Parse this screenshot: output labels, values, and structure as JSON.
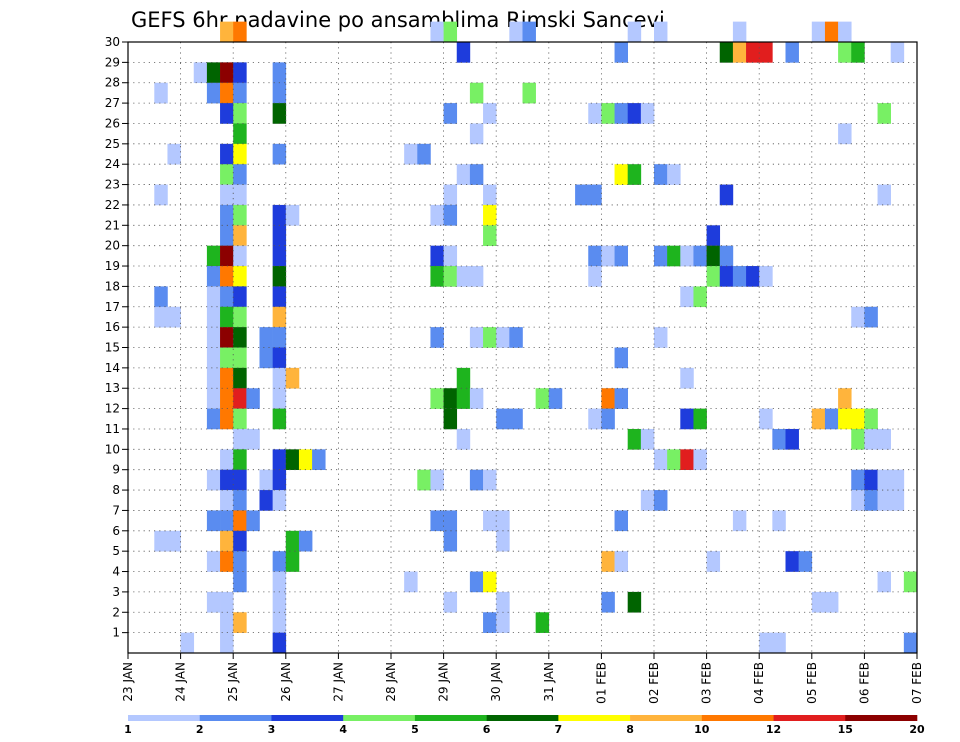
{
  "chart_data": {
    "type": "heatmap",
    "title": "GEFS 6hr padavine po ansamblima Rimski Sancevi",
    "x_unit": "6-hour step",
    "x_tick_labels": [
      "23 JAN",
      "24 JAN",
      "25 JAN",
      "26 JAN",
      "27 JAN",
      "28 JAN",
      "29 JAN",
      "30 JAN",
      "31 JAN",
      "01 FEB",
      "02 FEB",
      "03 FEB",
      "04 FEB",
      "05 FEB",
      "06 FEB",
      "07 FEB"
    ],
    "y_tick_labels": [
      "1",
      "2",
      "3",
      "4",
      "5",
      "6",
      "7",
      "8",
      "9",
      "10",
      "11",
      "12",
      "13",
      "14",
      "15",
      "16",
      "17",
      "18",
      "19",
      "20",
      "21",
      "22",
      "23",
      "24",
      "25",
      "26",
      "27",
      "28",
      "29",
      "30"
    ],
    "xlim": [
      0,
      60
    ],
    "ylim": [
      0,
      30
    ],
    "grid": true,
    "colorbar": {
      "labels": [
        "1",
        "2",
        "3",
        "4",
        "5",
        "6",
        "7",
        "8",
        "10",
        "12",
        "15",
        "20"
      ],
      "colors": [
        "#b4c8ff",
        "#5a8cf0",
        "#1e3cdc",
        "#78f064",
        "#1eb41e",
        "#006400",
        "#ffff00",
        "#ffb43c",
        "#ff7800",
        "#e11e1e",
        "#8c0000"
      ]
    },
    "cells_format": "[x_step, member, color_index]",
    "cells": [
      [
        7,
        30,
        7
      ],
      [
        8,
        30,
        8
      ],
      [
        23,
        30,
        0
      ],
      [
        24,
        30,
        3
      ],
      [
        29,
        30,
        0
      ],
      [
        30,
        30,
        1
      ],
      [
        38,
        30,
        0
      ],
      [
        40,
        30,
        0
      ],
      [
        46,
        30,
        0
      ],
      [
        52,
        30,
        0
      ],
      [
        53,
        30,
        8
      ],
      [
        54,
        30,
        0
      ],
      [
        25,
        29,
        2
      ],
      [
        37,
        29,
        1
      ],
      [
        45,
        29,
        5
      ],
      [
        46,
        29,
        7
      ],
      [
        47,
        29,
        9
      ],
      [
        48,
        29,
        9
      ],
      [
        50,
        29,
        1
      ],
      [
        54,
        29,
        3
      ],
      [
        55,
        29,
        4
      ],
      [
        58,
        29,
        0
      ],
      [
        5,
        28,
        0
      ],
      [
        6,
        28,
        5
      ],
      [
        7,
        28,
        10
      ],
      [
        8,
        28,
        2
      ],
      [
        11,
        28,
        1
      ],
      [
        2,
        27,
        0
      ],
      [
        6,
        27,
        1
      ],
      [
        7,
        27,
        8
      ],
      [
        8,
        27,
        1
      ],
      [
        11,
        27,
        1
      ],
      [
        26,
        27,
        3
      ],
      [
        30,
        27,
        3
      ],
      [
        7,
        26,
        2
      ],
      [
        8,
        26,
        3
      ],
      [
        11,
        26,
        5
      ],
      [
        24,
        26,
        1
      ],
      [
        27,
        26,
        0
      ],
      [
        35,
        26,
        0
      ],
      [
        36,
        26,
        3
      ],
      [
        37,
        26,
        1
      ],
      [
        38,
        26,
        2
      ],
      [
        39,
        26,
        0
      ],
      [
        57,
        26,
        3
      ],
      [
        8,
        25,
        4
      ],
      [
        26,
        25,
        0
      ],
      [
        54,
        25,
        0
      ],
      [
        3,
        24,
        0
      ],
      [
        7,
        24,
        2
      ],
      [
        8,
        24,
        6
      ],
      [
        11,
        24,
        1
      ],
      [
        21,
        24,
        0
      ],
      [
        22,
        24,
        1
      ],
      [
        7,
        23,
        3
      ],
      [
        8,
        23,
        1
      ],
      [
        25,
        23,
        0
      ],
      [
        26,
        23,
        1
      ],
      [
        37,
        23,
        6
      ],
      [
        38,
        23,
        4
      ],
      [
        40,
        23,
        1
      ],
      [
        41,
        23,
        0
      ],
      [
        2,
        22,
        0
      ],
      [
        7,
        22,
        0
      ],
      [
        8,
        22,
        0
      ],
      [
        24,
        22,
        0
      ],
      [
        27,
        22,
        0
      ],
      [
        34,
        22,
        1
      ],
      [
        35,
        22,
        1
      ],
      [
        45,
        22,
        2
      ],
      [
        57,
        22,
        0
      ],
      [
        7,
        21,
        1
      ],
      [
        8,
        21,
        3
      ],
      [
        11,
        21,
        2
      ],
      [
        12,
        21,
        0
      ],
      [
        23,
        21,
        0
      ],
      [
        24,
        21,
        1
      ],
      [
        27,
        21,
        6
      ],
      [
        7,
        20,
        1
      ],
      [
        8,
        20,
        7
      ],
      [
        11,
        20,
        2
      ],
      [
        27,
        20,
        3
      ],
      [
        44,
        20,
        2
      ],
      [
        6,
        19,
        4
      ],
      [
        7,
        19,
        10
      ],
      [
        8,
        19,
        0
      ],
      [
        11,
        19,
        2
      ],
      [
        23,
        19,
        2
      ],
      [
        24,
        19,
        0
      ],
      [
        35,
        19,
        1
      ],
      [
        36,
        19,
        0
      ],
      [
        37,
        19,
        1
      ],
      [
        40,
        19,
        1
      ],
      [
        41,
        19,
        4
      ],
      [
        42,
        19,
        0
      ],
      [
        43,
        19,
        1
      ],
      [
        44,
        19,
        5
      ],
      [
        45,
        19,
        1
      ],
      [
        6,
        18,
        1
      ],
      [
        7,
        18,
        8
      ],
      [
        8,
        18,
        6
      ],
      [
        11,
        18,
        5
      ],
      [
        23,
        18,
        4
      ],
      [
        24,
        18,
        3
      ],
      [
        25,
        18,
        0
      ],
      [
        26,
        18,
        0
      ],
      [
        35,
        18,
        0
      ],
      [
        44,
        18,
        3
      ],
      [
        45,
        18,
        2
      ],
      [
        46,
        18,
        1
      ],
      [
        47,
        18,
        2
      ],
      [
        48,
        18,
        0
      ],
      [
        2,
        17,
        1
      ],
      [
        6,
        17,
        0
      ],
      [
        7,
        17,
        1
      ],
      [
        8,
        17,
        2
      ],
      [
        11,
        17,
        2
      ],
      [
        42,
        17,
        0
      ],
      [
        43,
        17,
        3
      ],
      [
        2,
        16,
        0
      ],
      [
        3,
        16,
        0
      ],
      [
        6,
        16,
        0
      ],
      [
        7,
        16,
        4
      ],
      [
        8,
        16,
        3
      ],
      [
        11,
        16,
        7
      ],
      [
        55,
        16,
        0
      ],
      [
        56,
        16,
        1
      ],
      [
        6,
        15,
        0
      ],
      [
        7,
        15,
        10
      ],
      [
        8,
        15,
        5
      ],
      [
        10,
        15,
        1
      ],
      [
        11,
        15,
        1
      ],
      [
        23,
        15,
        1
      ],
      [
        26,
        15,
        0
      ],
      [
        27,
        15,
        3
      ],
      [
        28,
        15,
        0
      ],
      [
        29,
        15,
        1
      ],
      [
        40,
        15,
        0
      ],
      [
        6,
        14,
        0
      ],
      [
        7,
        14,
        3
      ],
      [
        8,
        14,
        3
      ],
      [
        10,
        14,
        1
      ],
      [
        11,
        14,
        2
      ],
      [
        37,
        14,
        1
      ],
      [
        6,
        13,
        0
      ],
      [
        7,
        13,
        8
      ],
      [
        8,
        13,
        5
      ],
      [
        11,
        13,
        0
      ],
      [
        12,
        13,
        7
      ],
      [
        25,
        13,
        4
      ],
      [
        42,
        13,
        0
      ],
      [
        6,
        12,
        0
      ],
      [
        7,
        12,
        8
      ],
      [
        8,
        12,
        9
      ],
      [
        9,
        12,
        1
      ],
      [
        11,
        12,
        0
      ],
      [
        23,
        12,
        3
      ],
      [
        24,
        12,
        5
      ],
      [
        25,
        12,
        4
      ],
      [
        26,
        12,
        0
      ],
      [
        31,
        12,
        3
      ],
      [
        32,
        12,
        1
      ],
      [
        36,
        12,
        8
      ],
      [
        37,
        12,
        1
      ],
      [
        54,
        12,
        7
      ],
      [
        6,
        11,
        1
      ],
      [
        7,
        11,
        8
      ],
      [
        8,
        11,
        3
      ],
      [
        11,
        11,
        4
      ],
      [
        24,
        11,
        5
      ],
      [
        28,
        11,
        1
      ],
      [
        29,
        11,
        1
      ],
      [
        35,
        11,
        0
      ],
      [
        36,
        11,
        1
      ],
      [
        42,
        11,
        2
      ],
      [
        43,
        11,
        4
      ],
      [
        48,
        11,
        0
      ],
      [
        52,
        11,
        7
      ],
      [
        53,
        11,
        1
      ],
      [
        54,
        11,
        6
      ],
      [
        55,
        11,
        6
      ],
      [
        56,
        11,
        3
      ],
      [
        8,
        10,
        0
      ],
      [
        9,
        10,
        0
      ],
      [
        25,
        10,
        0
      ],
      [
        38,
        10,
        4
      ],
      [
        39,
        10,
        0
      ],
      [
        49,
        10,
        1
      ],
      [
        50,
        10,
        2
      ],
      [
        55,
        10,
        3
      ],
      [
        56,
        10,
        0
      ],
      [
        57,
        10,
        0
      ],
      [
        7,
        9,
        0
      ],
      [
        8,
        9,
        4
      ],
      [
        11,
        9,
        2
      ],
      [
        12,
        9,
        5
      ],
      [
        13,
        9,
        6
      ],
      [
        14,
        9,
        1
      ],
      [
        40,
        9,
        0
      ],
      [
        41,
        9,
        3
      ],
      [
        42,
        9,
        9
      ],
      [
        43,
        9,
        0
      ],
      [
        6,
        8,
        0
      ],
      [
        7,
        8,
        2
      ],
      [
        8,
        8,
        2
      ],
      [
        10,
        8,
        0
      ],
      [
        11,
        8,
        2
      ],
      [
        22,
        8,
        3
      ],
      [
        23,
        8,
        0
      ],
      [
        26,
        8,
        1
      ],
      [
        27,
        8,
        0
      ],
      [
        55,
        8,
        1
      ],
      [
        56,
        8,
        2
      ],
      [
        57,
        8,
        0
      ],
      [
        58,
        8,
        0
      ],
      [
        7,
        7,
        0
      ],
      [
        8,
        7,
        1
      ],
      [
        10,
        7,
        2
      ],
      [
        11,
        7,
        0
      ],
      [
        39,
        7,
        0
      ],
      [
        40,
        7,
        1
      ],
      [
        55,
        7,
        0
      ],
      [
        56,
        7,
        1
      ],
      [
        57,
        7,
        0
      ],
      [
        58,
        7,
        0
      ],
      [
        6,
        6,
        1
      ],
      [
        7,
        6,
        1
      ],
      [
        8,
        6,
        8
      ],
      [
        9,
        6,
        1
      ],
      [
        23,
        6,
        1
      ],
      [
        24,
        6,
        1
      ],
      [
        27,
        6,
        0
      ],
      [
        28,
        6,
        0
      ],
      [
        37,
        6,
        1
      ],
      [
        46,
        6,
        0
      ],
      [
        49,
        6,
        0
      ],
      [
        2,
        5,
        0
      ],
      [
        3,
        5,
        0
      ],
      [
        7,
        5,
        7
      ],
      [
        8,
        5,
        2
      ],
      [
        12,
        5,
        4
      ],
      [
        13,
        5,
        1
      ],
      [
        24,
        5,
        1
      ],
      [
        28,
        5,
        0
      ],
      [
        6,
        4,
        0
      ],
      [
        7,
        4,
        8
      ],
      [
        8,
        4,
        1
      ],
      [
        11,
        4,
        1
      ],
      [
        12,
        4,
        4
      ],
      [
        36,
        4,
        7
      ],
      [
        37,
        4,
        0
      ],
      [
        44,
        4,
        0
      ],
      [
        50,
        4,
        2
      ],
      [
        51,
        4,
        1
      ],
      [
        8,
        3,
        1
      ],
      [
        11,
        3,
        0
      ],
      [
        21,
        3,
        0
      ],
      [
        26,
        3,
        1
      ],
      [
        27,
        3,
        6
      ],
      [
        57,
        3,
        0
      ],
      [
        59,
        3,
        3
      ],
      [
        6,
        2,
        0
      ],
      [
        7,
        2,
        0
      ],
      [
        11,
        2,
        0
      ],
      [
        24,
        2,
        0
      ],
      [
        28,
        2,
        0
      ],
      [
        36,
        2,
        1
      ],
      [
        38,
        2,
        5
      ],
      [
        52,
        2,
        0
      ],
      [
        53,
        2,
        0
      ],
      [
        7,
        1,
        0
      ],
      [
        8,
        1,
        7
      ],
      [
        11,
        1,
        0
      ],
      [
        27,
        1,
        1
      ],
      [
        28,
        1,
        0
      ],
      [
        31,
        1,
        4
      ],
      [
        4,
        0,
        0
      ],
      [
        7,
        0,
        0
      ],
      [
        11,
        0,
        2
      ],
      [
        48,
        0,
        0
      ],
      [
        49,
        0,
        0
      ],
      [
        59,
        0,
        1
      ]
    ]
  }
}
